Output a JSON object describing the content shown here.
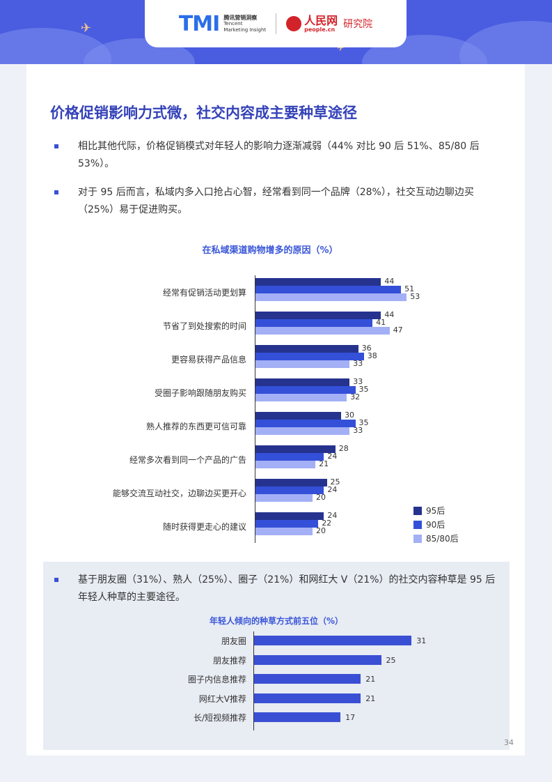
{
  "header": {
    "tmi_logo": "TMI",
    "tmi_cn": "腾讯营销洞察",
    "tmi_en_1": "Tencent",
    "tmi_en_2": "Marketing Insight",
    "pd_name": "人民网",
    "pd_url": "people.cn",
    "pd_institute": "研究院"
  },
  "title": "价格促销影响力式微，社交内容成主要种草途径",
  "bullets": [
    "相比其他代际，价格促销模式对年轻人的影响力逐渐减弱（44% 对比 90 后 51%、85/80 后 53%）。",
    "对于 95 后而言，私域内多入口抢占心智，经常看到同一个品牌（28%），社交互动边聊边买（25%）易于促进购买。"
  ],
  "chart1": {
    "title": "在私域渠道购物增多的原因（%）",
    "legend": [
      "95后",
      "90后",
      "85/80后"
    ],
    "colors": [
      "#25338f",
      "#3450d8",
      "#a3b0f5"
    ]
  },
  "bullet3": "基于朋友圈（31%）、熟人（25%）、圈子（21%）和网红大 V（21%）的社交内容种草是 95 后年轻人种草的主要途径。",
  "chart2": {
    "title": "年轻人倾向的种草方式前五位（%）",
    "color": "#3a50d4"
  },
  "chart_data": [
    {
      "type": "bar",
      "orientation": "horizontal",
      "title": "在私域渠道购物增多的原因（%）",
      "categories": [
        "经常有促销活动更划算",
        "节省了到处搜索的时间",
        "更容易获得产品信息",
        "受圈子影响跟随朋友购买",
        "熟人推荐的东西更可信可靠",
        "经常多次看到同一个产品的广告",
        "能够交流互动社交，边聊边买更开心",
        "随时获得更走心的建议"
      ],
      "series": [
        {
          "name": "95后",
          "values": [
            44,
            44,
            36,
            33,
            30,
            28,
            25,
            24
          ]
        },
        {
          "name": "90后",
          "values": [
            51,
            41,
            38,
            35,
            35,
            24,
            24,
            22
          ]
        },
        {
          "name": "85/80后",
          "values": [
            53,
            47,
            33,
            32,
            33,
            21,
            20,
            20
          ]
        }
      ],
      "legend": "bottom-right",
      "grid": false
    },
    {
      "type": "bar",
      "orientation": "horizontal",
      "title": "年轻人倾向的种草方式前五位（%）",
      "categories": [
        "朋友圈",
        "朋友推荐",
        "圈子内信息推荐",
        "网红大V推荐",
        "长/短视频推荐"
      ],
      "values": [
        31,
        25,
        21,
        21,
        17
      ],
      "grid": false
    }
  ],
  "page_number": "34"
}
